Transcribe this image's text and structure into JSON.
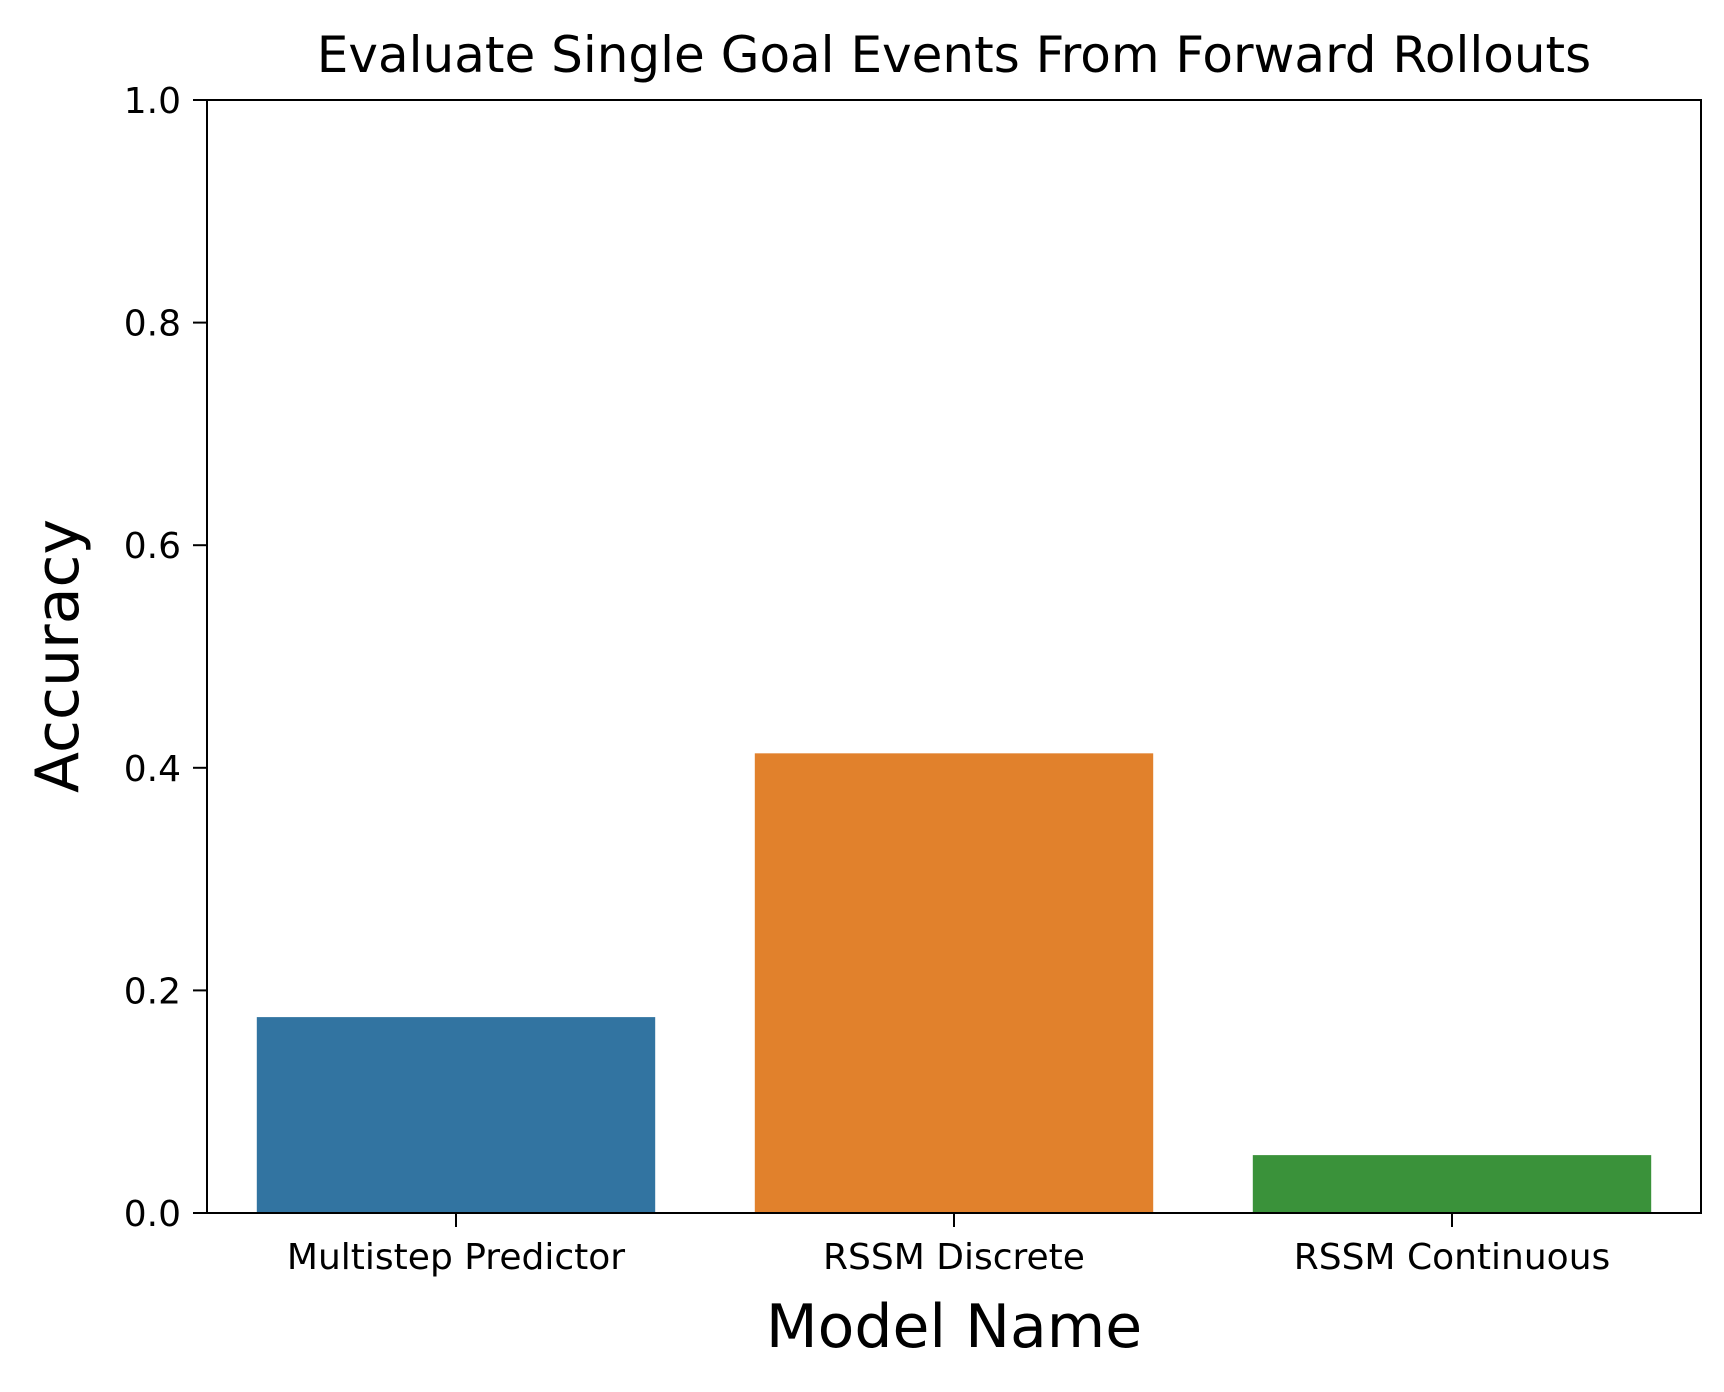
{
  "chart_data": {
    "type": "bar",
    "title": "Evaluate Single Goal Events From Forward Rollouts",
    "xlabel": "Model Name",
    "ylabel": "Accuracy",
    "categories": [
      "Multistep Predictor",
      "RSSM Discrete",
      "RSSM Continuous"
    ],
    "values": [
      0.176,
      0.413,
      0.052
    ],
    "colors": [
      "#3274a1",
      "#e1812c",
      "#3a923a"
    ],
    "ylim": [
      0,
      1.0
    ],
    "yticks": [
      {
        "value": 0.0,
        "label": "0.0"
      },
      {
        "value": 0.2,
        "label": "0.2"
      },
      {
        "value": 0.4,
        "label": "0.4"
      },
      {
        "value": 0.6,
        "label": "0.6"
      },
      {
        "value": 0.8,
        "label": "0.8"
      },
      {
        "value": 1.0,
        "label": "1.0"
      }
    ],
    "grid": false,
    "legend": "none"
  }
}
